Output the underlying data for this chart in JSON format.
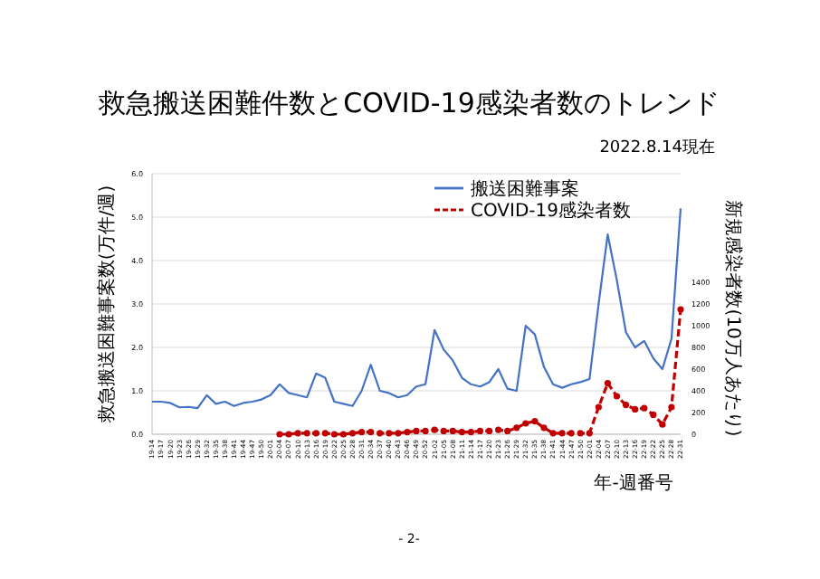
{
  "chart_data": {
    "type": "line",
    "title": "救急搬送困難件数とCOVID-19感染者数のトレンド",
    "subtitle": "2022.8.14現在",
    "categories": [
      "19-14",
      "19-17",
      "19-20",
      "19-23",
      "19-26",
      "19-29",
      "19-32",
      "19-35",
      "19-38",
      "19-41",
      "19-44",
      "19-47",
      "19-50",
      "20-01",
      "20-04",
      "20-07",
      "20-10",
      "20-13",
      "20-16",
      "20-19",
      "20-22",
      "20-25",
      "20-28",
      "20-31",
      "20-34",
      "20-37",
      "20-40",
      "20-43",
      "20-46",
      "20-49",
      "20-52",
      "21-02",
      "21-05",
      "21-08",
      "21-11",
      "21-14",
      "21-17",
      "21-20",
      "21-23",
      "21-26",
      "21-29",
      "21-32",
      "21-35",
      "21-38",
      "21-41",
      "21-44",
      "21-47",
      "21-50",
      "22-01",
      "22-04",
      "22-07",
      "22-10",
      "22-13",
      "22-16",
      "22-19",
      "22-22",
      "22-25",
      "22-28",
      "22-31"
    ],
    "series": [
      {
        "name": "搬送困難事案",
        "color": "#4472c4",
        "line_style": "solid",
        "marker": "none",
        "values": [
          0.75,
          0.75,
          0.72,
          0.62,
          0.63,
          0.6,
          0.9,
          0.7,
          0.75,
          0.65,
          0.72,
          0.75,
          0.8,
          0.9,
          1.15,
          0.95,
          0.9,
          0.85,
          1.4,
          1.3,
          0.75,
          0.7,
          0.65,
          1.0,
          1.6,
          1.0,
          0.95,
          0.85,
          0.9,
          1.1,
          1.15,
          2.4,
          1.95,
          1.7,
          1.3,
          1.15,
          1.1,
          1.2,
          1.5,
          1.05,
          1.0,
          2.5,
          2.3,
          1.55,
          1.15,
          1.07,
          1.15,
          1.2,
          1.27,
          3.0,
          4.6,
          3.55,
          2.35,
          2.0,
          2.15,
          1.75,
          1.5,
          2.2,
          5.2
        ]
      },
      {
        "name": "COVID-19感染者数",
        "color": "#c00000",
        "axis": "y2",
        "line_style": "dashed",
        "marker": "circle",
        "values": [
          null,
          null,
          null,
          null,
          null,
          null,
          null,
          null,
          null,
          null,
          null,
          null,
          null,
          null,
          0,
          0,
          10,
          10,
          10,
          10,
          0,
          0,
          10,
          20,
          20,
          10,
          10,
          10,
          20,
          30,
          30,
          40,
          30,
          30,
          20,
          20,
          30,
          30,
          40,
          30,
          60,
          100,
          120,
          60,
          10,
          10,
          10,
          10,
          10,
          250,
          470,
          350,
          270,
          230,
          240,
          180,
          90,
          250,
          1150
        ]
      }
    ],
    "ylim": [
      0,
      6
    ],
    "yticks": [
      {
        "value": 0,
        "label": "0.0"
      },
      {
        "value": 1,
        "label": "1.0"
      },
      {
        "value": 2,
        "label": "2.0"
      },
      {
        "value": 3,
        "label": "3.0"
      },
      {
        "value": 4,
        "label": "4.0"
      },
      {
        "value": 5,
        "label": "5.0"
      },
      {
        "value": 6,
        "label": "6.0"
      }
    ],
    "y2lim": [
      0,
      2400
    ],
    "y2ticks": [
      0,
      200,
      400,
      600,
      800,
      1000,
      1200,
      1400
    ],
    "ylabel": "救急搬送困難事案数(万件/週)",
    "y2label": "新規感染者数(10万人あたり)",
    "xlabel": "年-週番号",
    "grid": "y",
    "legend": "top right",
    "annotations": [
      "- 2-"
    ]
  }
}
